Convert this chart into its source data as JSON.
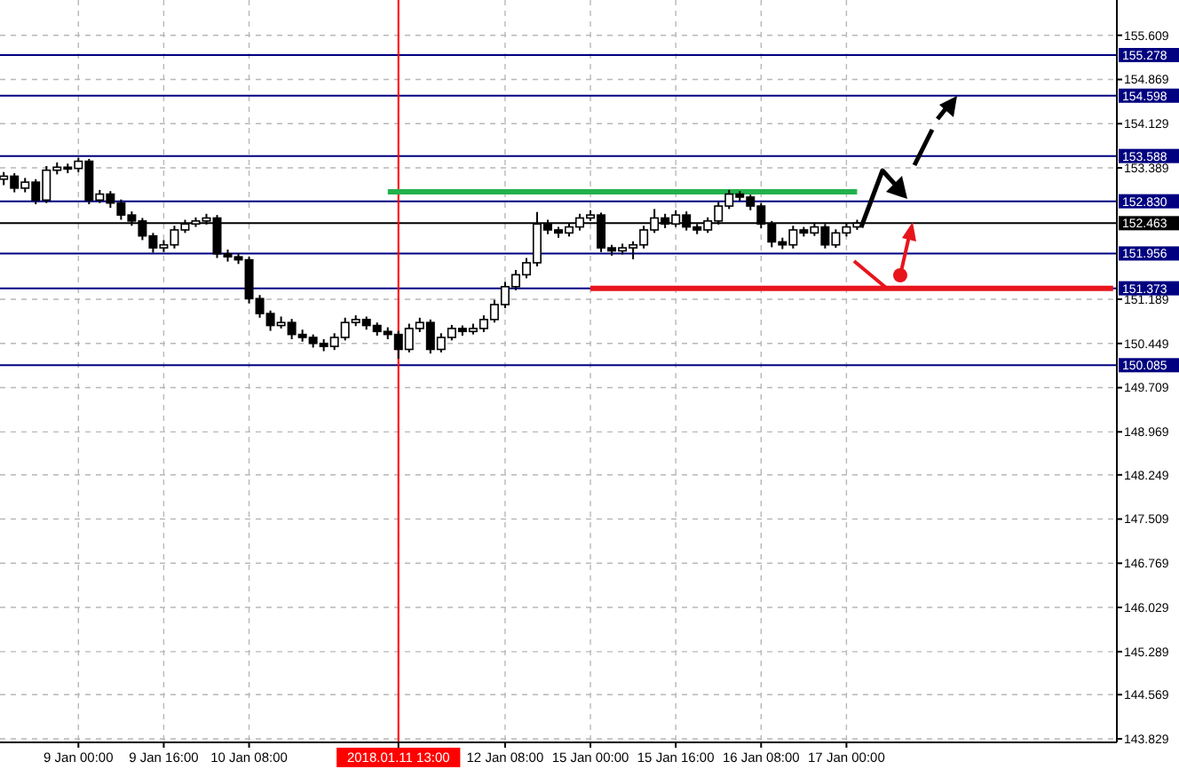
{
  "chart_data": {
    "type": "candlestick",
    "categories": [
      null,
      null,
      null,
      null,
      null,
      null,
      null,
      "9 Jan 00:00",
      null,
      null,
      null,
      null,
      null,
      null,
      null,
      "9 Jan 16:00",
      null,
      null,
      null,
      null,
      null,
      null,
      null,
      "10 Jan 08:00",
      null,
      null,
      null,
      null,
      null,
      null,
      null,
      null,
      null,
      null,
      null,
      null,
      null,
      "2018.01.11 13:00",
      null,
      null,
      null,
      null,
      null,
      null,
      null,
      null,
      null,
      "12 Jan 08:00",
      null,
      null,
      null,
      null,
      null,
      null,
      null,
      "15 Jan 00:00",
      null,
      null,
      null,
      null,
      null,
      null,
      null,
      "15 Jan 16:00",
      null,
      null,
      null,
      null,
      null,
      null,
      null,
      "16 Jan 08:00",
      null,
      null,
      null,
      null,
      null,
      null,
      null,
      "17 Jan 00:00",
      null,
      null,
      null,
      null,
      null,
      null,
      null,
      null,
      null,
      null,
      null,
      null,
      null,
      null,
      null,
      null,
      null,
      null,
      null,
      null,
      null,
      null,
      null,
      null,
      null
    ],
    "ohlc": [
      [
        153.2,
        153.32,
        153.1,
        153.25
      ],
      [
        153.25,
        153.3,
        152.98,
        153.05
      ],
      [
        153.05,
        153.22,
        152.98,
        153.15
      ],
      [
        153.15,
        153.2,
        152.78,
        152.85
      ],
      [
        152.85,
        153.42,
        152.8,
        153.35
      ],
      [
        153.35,
        153.48,
        153.28,
        153.4
      ],
      [
        153.4,
        153.46,
        153.3,
        153.38
      ],
      [
        153.38,
        153.56,
        153.32,
        153.5
      ],
      [
        153.5,
        153.54,
        152.78,
        152.85
      ],
      [
        152.85,
        153.02,
        152.8,
        152.95
      ],
      [
        152.95,
        153.0,
        152.72,
        152.8
      ],
      [
        152.8,
        152.86,
        152.52,
        152.6
      ],
      [
        152.6,
        152.66,
        152.42,
        152.5
      ],
      [
        152.5,
        152.55,
        152.18,
        152.25
      ],
      [
        152.25,
        152.3,
        151.97,
        152.05
      ],
      [
        152.05,
        152.18,
        151.98,
        152.1
      ],
      [
        152.1,
        152.42,
        152.04,
        152.35
      ],
      [
        152.35,
        152.52,
        152.3,
        152.45
      ],
      [
        152.45,
        152.56,
        152.4,
        152.5
      ],
      [
        152.5,
        152.62,
        152.44,
        152.55
      ],
      [
        152.55,
        152.6,
        151.88,
        151.95
      ],
      [
        151.95,
        152.02,
        151.82,
        151.9
      ],
      [
        151.9,
        151.96,
        151.78,
        151.85
      ],
      [
        151.85,
        151.9,
        151.12,
        151.2
      ],
      [
        151.2,
        151.26,
        150.88,
        150.95
      ],
      [
        150.95,
        151.0,
        150.66,
        150.75
      ],
      [
        150.75,
        150.9,
        150.7,
        150.8
      ],
      [
        150.8,
        150.86,
        150.52,
        150.6
      ],
      [
        150.6,
        150.68,
        150.48,
        150.55
      ],
      [
        150.55,
        150.6,
        150.38,
        150.45
      ],
      [
        150.45,
        150.52,
        150.32,
        150.4
      ],
      [
        150.4,
        150.62,
        150.34,
        150.55
      ],
      [
        150.55,
        150.88,
        150.5,
        150.8
      ],
      [
        150.8,
        150.92,
        150.74,
        150.85
      ],
      [
        150.85,
        150.9,
        150.68,
        150.75
      ],
      [
        150.75,
        150.8,
        150.58,
        150.65
      ],
      [
        150.65,
        150.72,
        150.52,
        150.6
      ],
      [
        150.6,
        150.66,
        150.19,
        150.35
      ],
      [
        150.35,
        150.78,
        150.3,
        150.7
      ],
      [
        150.7,
        150.88,
        150.64,
        150.8
      ],
      [
        150.8,
        150.85,
        150.28,
        150.35
      ],
      [
        150.35,
        150.62,
        150.3,
        150.55
      ],
      [
        150.55,
        150.76,
        150.5,
        150.7
      ],
      [
        150.7,
        150.75,
        150.58,
        150.65
      ],
      [
        150.65,
        150.78,
        150.6,
        150.7
      ],
      [
        150.7,
        150.92,
        150.64,
        150.85
      ],
      [
        150.85,
        151.18,
        150.8,
        151.1
      ],
      [
        151.1,
        151.48,
        151.04,
        151.4
      ],
      [
        151.4,
        151.68,
        151.34,
        151.6
      ],
      [
        151.6,
        151.88,
        151.54,
        151.8
      ],
      [
        151.8,
        152.65,
        151.74,
        152.45
      ],
      [
        152.45,
        152.52,
        152.28,
        152.35
      ],
      [
        152.35,
        152.4,
        152.22,
        152.3
      ],
      [
        152.3,
        152.46,
        152.24,
        152.4
      ],
      [
        152.4,
        152.62,
        152.34,
        152.55
      ],
      [
        152.55,
        152.68,
        152.5,
        152.6
      ],
      [
        152.6,
        152.64,
        151.98,
        152.05
      ],
      [
        152.05,
        152.1,
        151.92,
        152.0
      ],
      [
        152.0,
        152.12,
        151.94,
        152.05
      ],
      [
        152.05,
        152.16,
        151.86,
        152.1
      ],
      [
        152.1,
        152.42,
        152.04,
        152.35
      ],
      [
        152.35,
        152.7,
        152.3,
        152.55
      ],
      [
        152.55,
        152.62,
        152.38,
        152.45
      ],
      [
        152.45,
        152.68,
        152.4,
        152.6
      ],
      [
        152.6,
        152.66,
        152.34,
        152.4
      ],
      [
        152.4,
        152.45,
        152.28,
        152.35
      ],
      [
        152.35,
        152.56,
        152.3,
        152.5
      ],
      [
        152.5,
        152.82,
        152.44,
        152.75
      ],
      [
        152.75,
        153.02,
        152.7,
        152.95
      ],
      [
        152.95,
        153.0,
        152.84,
        152.9
      ],
      [
        152.9,
        152.94,
        152.68,
        152.75
      ],
      [
        152.75,
        152.8,
        152.38,
        152.45
      ],
      [
        152.45,
        152.5,
        152.06,
        152.15
      ],
      [
        152.15,
        152.22,
        152.03,
        152.1
      ],
      [
        152.1,
        152.42,
        152.04,
        152.35
      ],
      [
        152.35,
        152.4,
        152.24,
        152.3
      ],
      [
        152.3,
        152.47,
        152.25,
        152.4
      ],
      [
        152.4,
        152.45,
        152.04,
        152.1
      ],
      [
        152.1,
        152.36,
        152.05,
        152.3
      ],
      [
        152.3,
        152.46,
        152.24,
        152.4
      ],
      [
        152.4,
        152.52,
        152.35,
        152.463
      ],
      null,
      null,
      null,
      null,
      null,
      null,
      null,
      null,
      null,
      null,
      null,
      null,
      null,
      null,
      null,
      null,
      null,
      null,
      null,
      null,
      null,
      null,
      null,
      null
    ],
    "series": [
      {
        "type": "line",
        "color": "#22b14c",
        "values": [
          null,
          null,
          null,
          null,
          null,
          null,
          null,
          null,
          null,
          null,
          null,
          null,
          null,
          null,
          null,
          null,
          null,
          null,
          null,
          null,
          null,
          null,
          null,
          null,
          null,
          null,
          null,
          null,
          null,
          null,
          null,
          null,
          null,
          null,
          null,
          null,
          152.99,
          152.99,
          152.99,
          152.99,
          152.99,
          152.99,
          152.99,
          152.99,
          152.99,
          152.99,
          152.99,
          152.99,
          152.99,
          152.99,
          152.99,
          152.99,
          152.99,
          152.99,
          152.99,
          152.99,
          152.99,
          152.99,
          152.99,
          152.99,
          152.99,
          152.99,
          152.99,
          152.99,
          152.99,
          152.99,
          152.99,
          152.99,
          152.99,
          152.99,
          152.99,
          152.99,
          152.99,
          152.99,
          152.99,
          152.99,
          152.99,
          152.99,
          152.99,
          152.99,
          152.99,
          null,
          null,
          null,
          null,
          null,
          null,
          null,
          null,
          null,
          null,
          null,
          null,
          null,
          null,
          null,
          null,
          null,
          null,
          null,
          null,
          null,
          null,
          null,
          null
        ]
      },
      {
        "type": "line",
        "color": "#e8141c",
        "values": [
          null,
          null,
          null,
          null,
          null,
          null,
          null,
          null,
          null,
          null,
          null,
          null,
          null,
          null,
          null,
          null,
          null,
          null,
          null,
          null,
          null,
          null,
          null,
          null,
          null,
          null,
          null,
          null,
          null,
          null,
          null,
          null,
          null,
          null,
          null,
          null,
          null,
          null,
          null,
          null,
          null,
          null,
          null,
          null,
          null,
          null,
          null,
          null,
          null,
          null,
          null,
          null,
          null,
          null,
          null,
          151.37,
          151.37,
          151.37,
          151.37,
          151.37,
          151.37,
          151.37,
          151.37,
          151.37,
          151.37,
          151.37,
          151.37,
          151.37,
          151.37,
          151.37,
          151.37,
          151.37,
          151.37,
          151.37,
          151.37,
          151.37,
          151.37,
          151.37,
          151.37,
          151.37,
          151.37,
          151.37,
          151.37,
          151.37,
          151.37,
          151.37,
          151.37,
          151.37,
          151.37,
          151.37,
          151.37,
          151.37,
          151.37,
          151.37,
          151.37,
          151.37,
          151.37,
          151.37,
          151.37,
          151.37,
          151.37,
          151.37,
          151.37,
          151.37,
          151.37
        ]
      }
    ],
    "ylim": [
      143.77,
      156.2
    ],
    "yticks": [
      155.609,
      154.869,
      154.129,
      153.389,
      151.189,
      150.449,
      149.709,
      148.969,
      148.249,
      147.509,
      146.769,
      146.029,
      145.289,
      144.569,
      143.829
    ],
    "ref_lines": [
      {
        "axis": "y",
        "value": 155.278,
        "label": "155.278",
        "color": "#000080"
      },
      {
        "axis": "y",
        "value": 154.598,
        "label": "154.598",
        "color": "#000080"
      },
      {
        "axis": "y",
        "value": 153.588,
        "label": "153.588",
        "color": "#000080"
      },
      {
        "axis": "y",
        "value": 152.83,
        "label": "152.830",
        "color": "#000080"
      },
      {
        "axis": "y",
        "value": 152.463,
        "label": "152.463",
        "color": "#000000"
      },
      {
        "axis": "y",
        "value": 151.956,
        "label": "151.956",
        "color": "#000080"
      },
      {
        "axis": "y",
        "value": 151.373,
        "label": "151.373",
        "color": "#000080"
      },
      {
        "axis": "y",
        "value": 150.085,
        "label": "150.085",
        "color": "#000080"
      },
      {
        "axis": "x",
        "value": "2018.01.11 13:00",
        "color": "#ff0000"
      }
    ],
    "grid": true
  }
}
